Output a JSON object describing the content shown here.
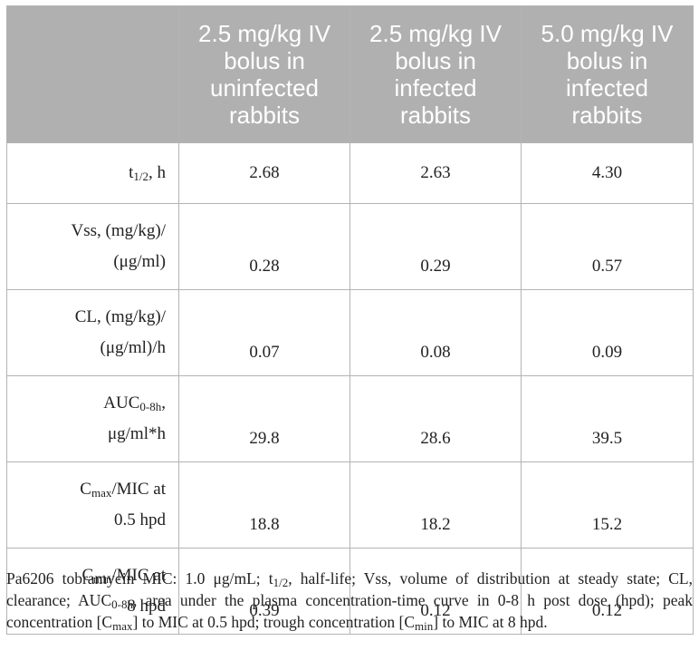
{
  "table": {
    "headers": [
      "",
      "2.5 mg/kg IV bolus in uninfected rabbits",
      "2.5 mg/kg IV bolus in infected rabbits",
      "5.0 mg/kg IV bolus in infected rabbits"
    ],
    "rows": [
      {
        "label": {
          "pre": "t",
          "sub": "1/2",
          "post": ", h"
        },
        "values": [
          "2.68",
          "2.63",
          "4.30"
        ]
      },
      {
        "label": {
          "line1": "Vss, (mg/kg)/",
          "line2": "(μg/ml)"
        },
        "values": [
          "0.28",
          "0.29",
          "0.57"
        ]
      },
      {
        "label": {
          "line1": "CL, (mg/kg)/",
          "line2": "(μg/ml)/h"
        },
        "values": [
          "0.07",
          "0.08",
          "0.09"
        ]
      },
      {
        "label": {
          "pre": "AUC",
          "sub": "0-8h",
          "post": ",",
          "line2": "μg/ml*h"
        },
        "values": [
          "29.8",
          "28.6",
          "39.5"
        ]
      },
      {
        "label": {
          "pre": "C",
          "sub": "max",
          "post": "/MIC at",
          "line2": "0.5 hpd"
        },
        "values": [
          "18.8",
          "18.2",
          "15.2"
        ]
      },
      {
        "label": {
          "pre": "C",
          "sub": "min",
          "post": "/MIC at",
          "line2": "8 hpd"
        },
        "values": [
          "0.39",
          "0.12",
          "0.12"
        ]
      }
    ]
  },
  "footnote": {
    "p1": "Pa6206 tobramycin MIC: 1.0 μg/mL; t",
    "s1": "1/2",
    "p2": ", half-life; Vss, volume of distribution at steady state; CL, clearance; AUC",
    "s2": "0-8h",
    "p3": ", area under the plasma concentration-time curve in 0-8 h post dose (hpd); peak concentration [C",
    "s3": "max",
    "p4": "] to MIC at 0.5 hpd; trough concentration [C",
    "s4": "min",
    "p5": "] to MIC at 8 hpd."
  }
}
